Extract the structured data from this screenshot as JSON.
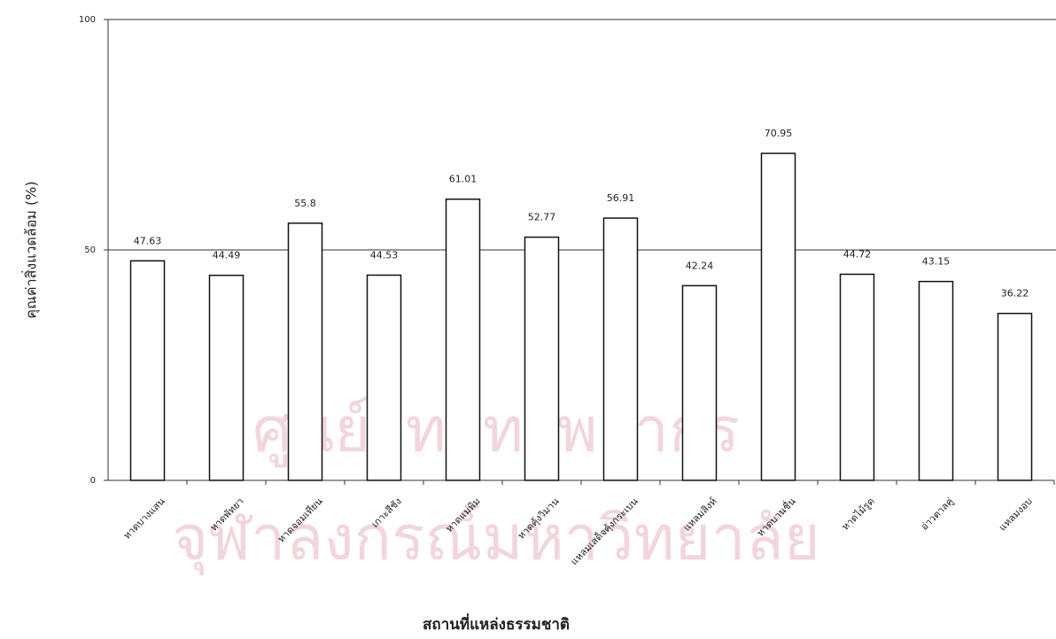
{
  "chart_data": {
    "type": "bar",
    "y_label": "คุณค่าสิ่งแวดล้อม (%)",
    "x_label": "สถานที่แหล่งธรรมชาติ",
    "watermark": [
      "ศูนย์วิทยทรัพยากร",
      "จุฬาลงกรณ์มหาวิทยาลัย"
    ],
    "categories": [
      "หาดบางแสน",
      "หาดพัทยา",
      "หาดจอมเทียน",
      "เกาะสีชัง",
      "หาดแม่พิม",
      "หาดคุ้งวิมาน",
      "แหลมเสด็จคุ้งกระเบน",
      "แหลมสิงห์",
      "หาดบานชื่น",
      "หาดไม้รูด",
      "อ่าวตาลคู่",
      "แหลมงอบ"
    ],
    "values": [
      47.63,
      44.49,
      55.8,
      44.53,
      61.01,
      52.77,
      56.91,
      42.24,
      70.95,
      44.72,
      43.15,
      36.22
    ],
    "color": "#ffffff",
    "ylim": [
      0,
      100
    ],
    "yticks": [
      0,
      50,
      100
    ],
    "grid": true
  }
}
